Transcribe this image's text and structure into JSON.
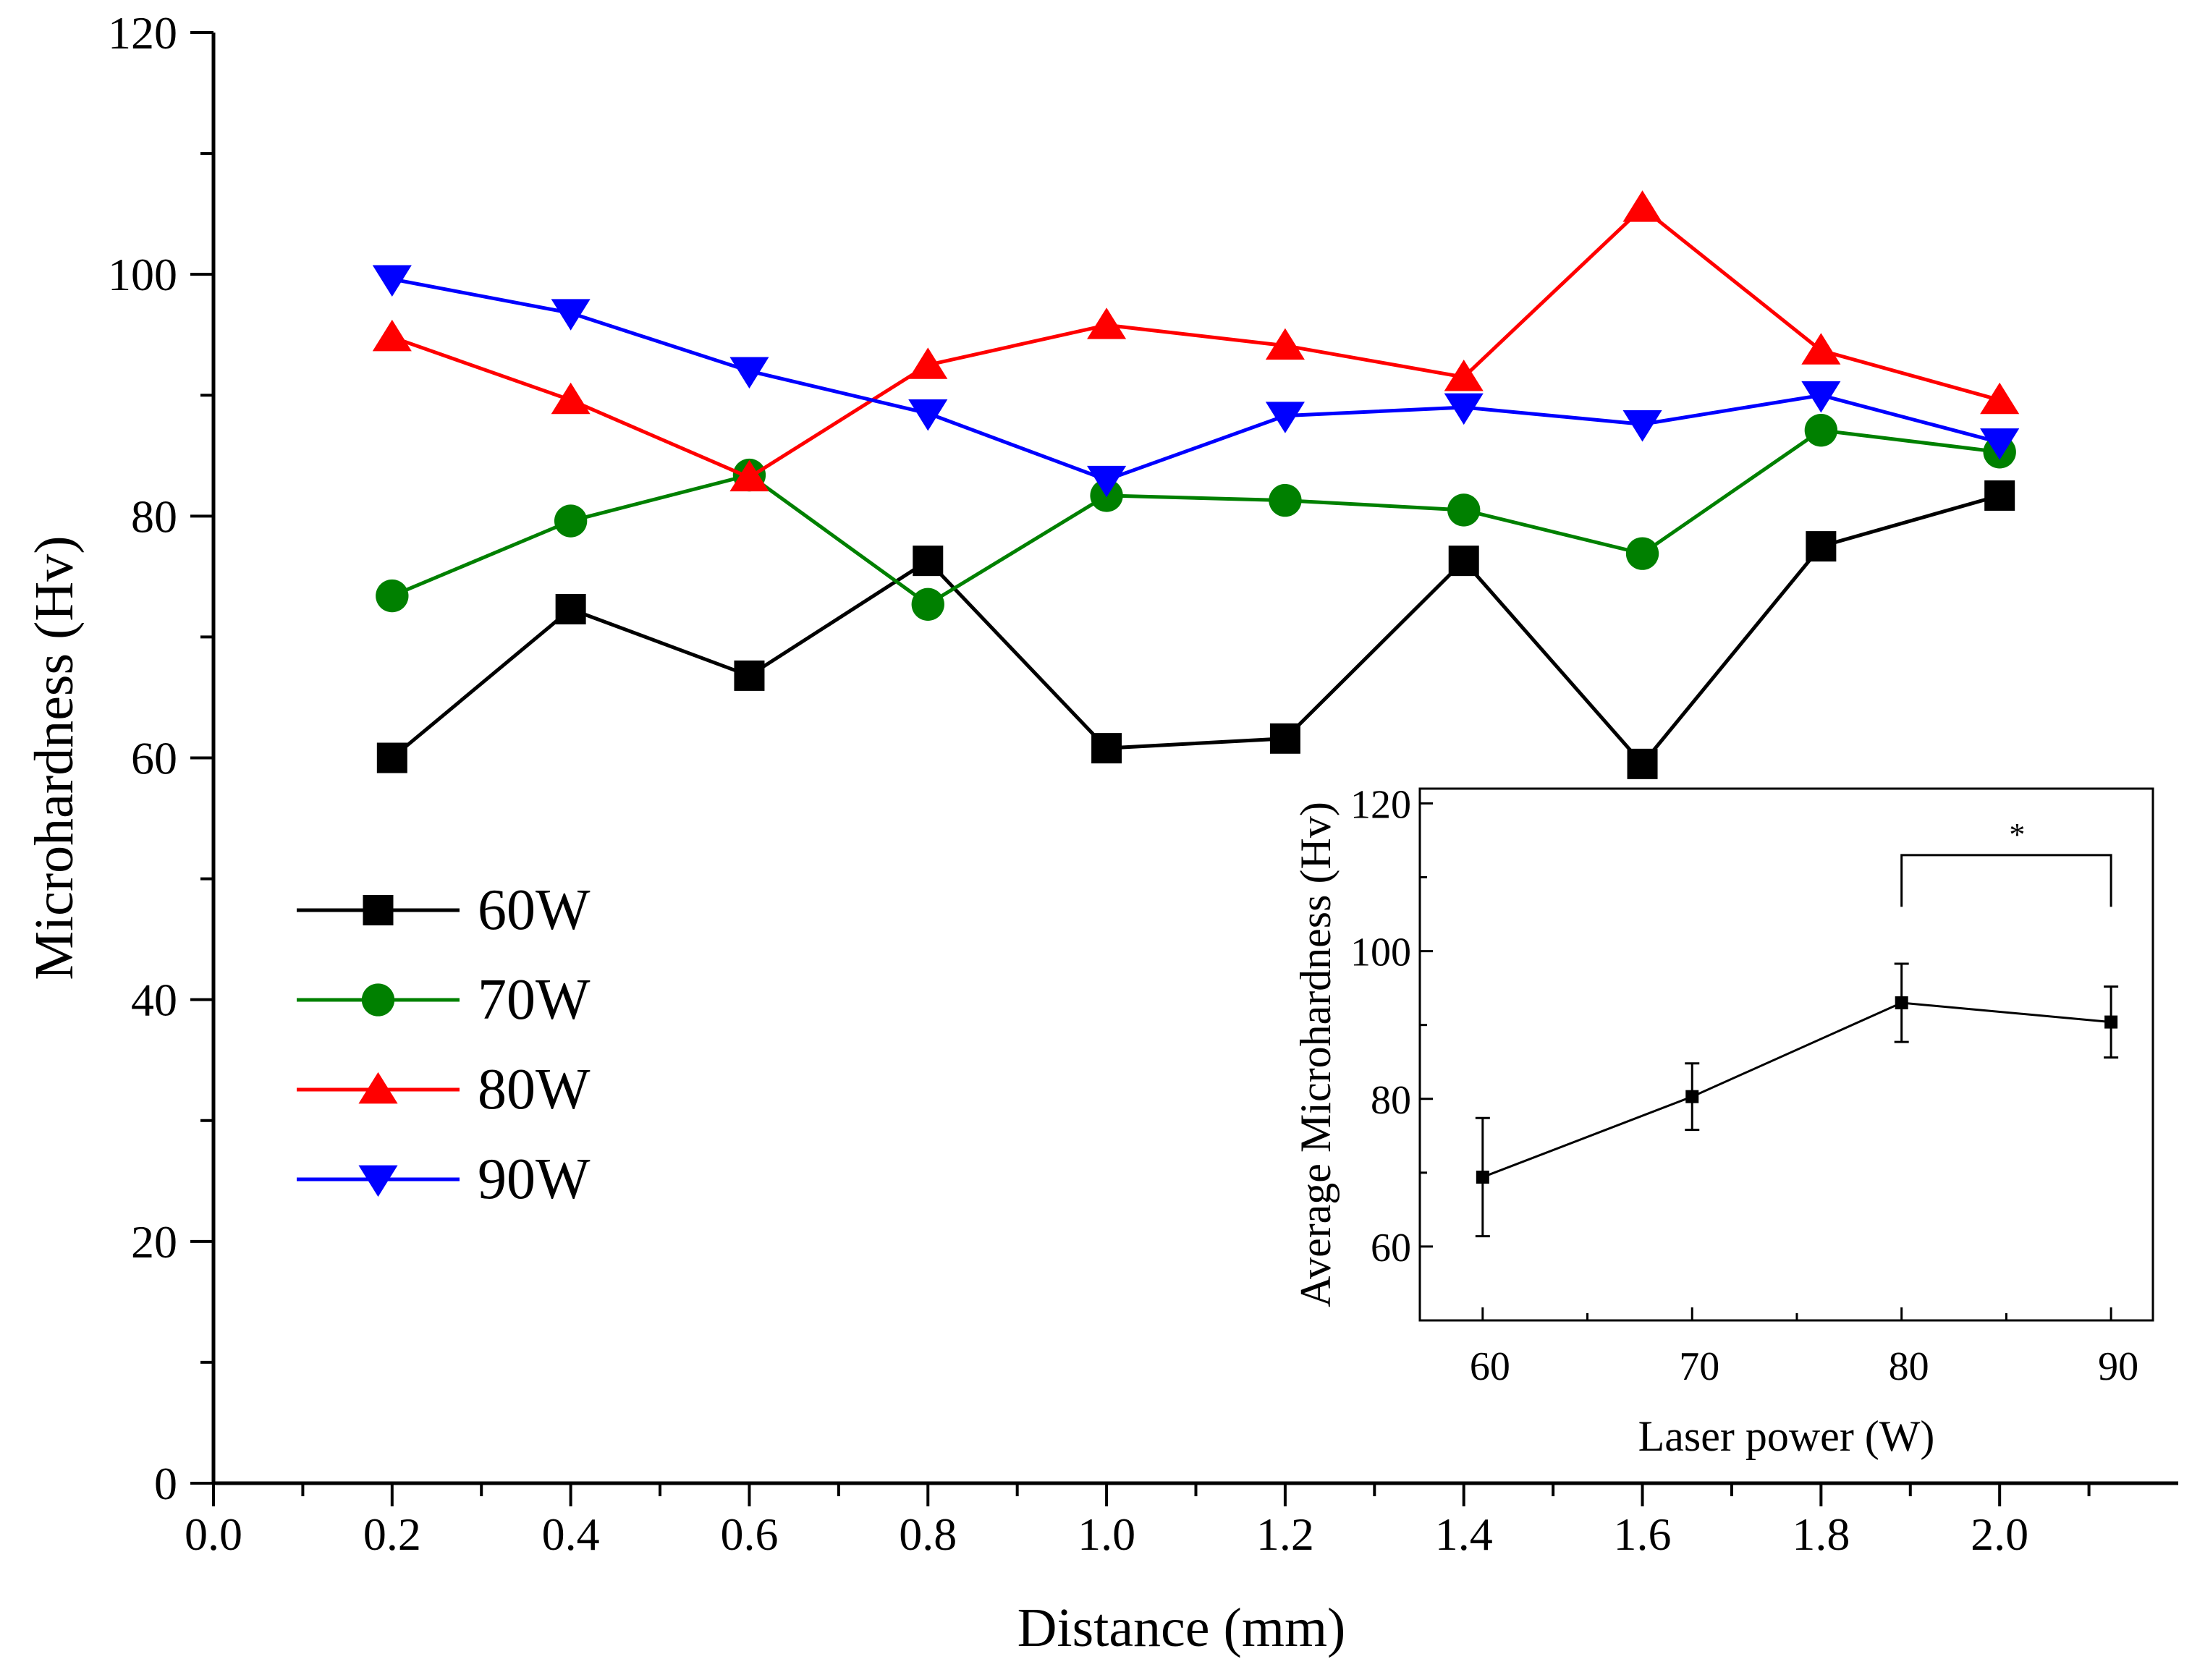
{
  "chart_data": [
    {
      "type": "line",
      "xlabel": "Distance (mm)",
      "ylabel": "Microhardness (Hv)",
      "xlim": [
        0.0,
        2.2
      ],
      "ylim": [
        0,
        120
      ],
      "xticks": [
        "0.0",
        "0.2",
        "0.4",
        "0.6",
        "0.8",
        "1.0",
        "1.2",
        "1.4",
        "1.6",
        "1.8",
        "2.0"
      ],
      "yticks": [
        "0",
        "20",
        "40",
        "60",
        "80",
        "100",
        "120"
      ],
      "x": [
        0.2,
        0.4,
        0.6,
        0.8,
        1.0,
        1.2,
        1.4,
        1.6,
        1.8,
        2.0
      ],
      "grid": false,
      "legend": "left",
      "series": [
        {
          "name": "60W",
          "color": "#000000",
          "marker": "square",
          "values": [
            60.0,
            72.3,
            66.8,
            76.3,
            60.8,
            61.6,
            76.3,
            59.5,
            77.5,
            81.7
          ]
        },
        {
          "name": "70W",
          "color": "#008000",
          "marker": "circle",
          "values": [
            73.4,
            79.6,
            83.4,
            72.7,
            81.7,
            81.3,
            80.5,
            76.9,
            87.1,
            85.3
          ]
        },
        {
          "name": "80W",
          "color": "#ff0000",
          "marker": "triangle-up",
          "values": [
            94.8,
            89.6,
            83.2,
            92.5,
            95.8,
            94.1,
            91.5,
            105.5,
            93.7,
            89.6
          ]
        },
        {
          "name": "90W",
          "color": "#0000ff",
          "marker": "triangle-down",
          "values": [
            99.6,
            96.8,
            92.0,
            88.5,
            83.0,
            88.3,
            89.0,
            87.6,
            90.0,
            86.1
          ]
        }
      ]
    },
    {
      "type": "line",
      "inset": true,
      "xlabel": "Laser power (W)",
      "ylabel": "Average Microhardness (Hv)",
      "xlim": [
        57,
        92
      ],
      "ylim": [
        50,
        122
      ],
      "xticks": [
        "60",
        "70",
        "80",
        "90"
      ],
      "yticks": [
        "60",
        "80",
        "100",
        "120"
      ],
      "x": [
        60,
        70,
        80,
        90
      ],
      "series": [
        {
          "name": "",
          "color": "#000000",
          "marker": "square",
          "values": [
            69.4,
            80.3,
            93.0,
            90.4
          ],
          "error": [
            8.0,
            4.5,
            5.3,
            4.8
          ]
        }
      ],
      "annotations": [
        {
          "text": "*",
          "between": [
            80,
            90
          ]
        }
      ]
    }
  ]
}
